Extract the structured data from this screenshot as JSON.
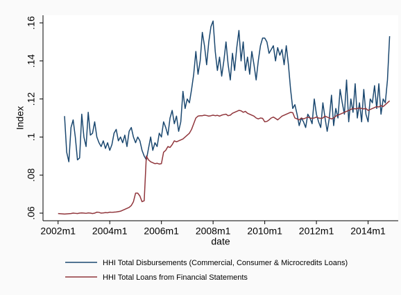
{
  "chart_data": {
    "type": "line",
    "x_label": "date",
    "y_label": "Index",
    "x": [
      504,
      505,
      506,
      507,
      508,
      509,
      510,
      511,
      512,
      513,
      514,
      515,
      516,
      517,
      518,
      519,
      520,
      521,
      522,
      523,
      524,
      525,
      526,
      527,
      528,
      529,
      530,
      531,
      532,
      533,
      534,
      535,
      536,
      537,
      538,
      539,
      540,
      541,
      542,
      543,
      544,
      545,
      546,
      547,
      548,
      549,
      550,
      551,
      552,
      553,
      554,
      555,
      556,
      557,
      558,
      559,
      560,
      561,
      562,
      563,
      564,
      565,
      566,
      567,
      568,
      569,
      570,
      571,
      572,
      573,
      574,
      575,
      576,
      577,
      578,
      579,
      580,
      581,
      582,
      583,
      584,
      585,
      586,
      587,
      588,
      589,
      590,
      591,
      592,
      593,
      594,
      595,
      596,
      597,
      598,
      599,
      600,
      601,
      602,
      603,
      604,
      605,
      606,
      607,
      608,
      609,
      610,
      611,
      612,
      613,
      614,
      615,
      616,
      617,
      618,
      619,
      620,
      621,
      622,
      623,
      624,
      625,
      626,
      627,
      628,
      629,
      630,
      631,
      632,
      633,
      634,
      635,
      636,
      637,
      638,
      639,
      640,
      641,
      642,
      643,
      644,
      645,
      646,
      647,
      648,
      649,
      650,
      651,
      652,
      653,
      654,
      655,
      656,
      657,
      658
    ],
    "series": [
      {
        "name": "HHI Total Disbursements (Commercial, Consumer & Microcredits Loans)",
        "color": "#1a476f",
        "values": [
          null,
          null,
          null,
          0.111,
          0.092,
          0.087,
          0.105,
          0.109,
          0.1,
          0.088,
          0.089,
          0.112,
          0.1,
          0.095,
          0.113,
          0.101,
          0.102,
          0.108,
          0.1,
          0.097,
          0.095,
          0.098,
          0.094,
          0.097,
          0.093,
          0.096,
          0.102,
          0.104,
          0.098,
          0.1,
          0.097,
          0.101,
          0.095,
          0.103,
          0.105,
          0.1,
          0.097,
          0.1,
          0.098,
          0.093,
          0.09,
          0.088,
          0.094,
          0.1,
          0.093,
          0.097,
          0.095,
          0.102,
          0.1,
          0.108,
          0.105,
          0.101,
          0.11,
          0.114,
          0.107,
          0.111,
          0.103,
          0.108,
          0.124,
          0.115,
          0.12,
          0.118,
          0.125,
          0.133,
          0.145,
          0.133,
          0.14,
          0.155,
          0.148,
          0.138,
          0.15,
          0.158,
          0.161,
          0.145,
          0.135,
          0.142,
          0.132,
          0.14,
          0.15,
          0.138,
          0.13,
          0.144,
          0.135,
          0.147,
          0.156,
          0.14,
          0.15,
          0.135,
          0.142,
          0.133,
          0.145,
          0.138,
          0.13,
          0.14,
          0.148,
          0.152,
          0.152,
          0.15,
          0.144,
          0.146,
          0.148,
          0.14,
          0.147,
          0.143,
          0.146,
          0.138,
          0.148,
          0.138,
          0.125,
          0.115,
          0.117,
          0.112,
          0.106,
          0.11,
          0.108,
          0.105,
          0.112,
          0.11,
          0.107,
          0.12,
          0.112,
          0.108,
          0.105,
          0.118,
          0.11,
          0.103,
          0.11,
          0.122,
          0.106,
          0.115,
          0.11,
          0.125,
          0.118,
          0.112,
          0.13,
          0.108,
          0.12,
          0.113,
          0.128,
          0.11,
          0.118,
          0.108,
          0.125,
          0.112,
          0.108,
          0.12,
          0.118,
          0.127,
          0.115,
          0.128,
          0.112,
          0.12,
          0.118,
          0.13,
          0.153
        ]
      },
      {
        "name": "HHI Total Loans from Financial Statements",
        "color": "#90353b",
        "values": [
          0.0598,
          0.0597,
          0.0596,
          0.0595,
          0.0596,
          0.0597,
          0.0598,
          0.06,
          0.0599,
          0.0598,
          0.06,
          0.0601,
          0.06,
          0.0599,
          0.0601,
          0.06,
          0.0598,
          0.06,
          0.0605,
          0.0604,
          0.06,
          0.0601,
          0.0603,
          0.0602,
          0.0605,
          0.0604,
          0.0605,
          0.0606,
          0.0608,
          0.061,
          0.0615,
          0.062,
          0.0625,
          0.063,
          0.064,
          0.066,
          0.0705,
          0.0705,
          0.069,
          0.066,
          0.0665,
          0.09,
          0.088,
          0.087,
          0.0865,
          0.086,
          0.0862,
          0.0858,
          0.086,
          0.092,
          0.093,
          0.095,
          0.0945,
          0.096,
          0.098,
          0.0975,
          0.098,
          0.0985,
          0.099,
          0.1,
          0.101,
          0.102,
          0.104,
          0.107,
          0.11,
          0.111,
          0.1112,
          0.1112,
          0.1115,
          0.1113,
          0.111,
          0.1112,
          0.1115,
          0.1112,
          0.1114,
          0.111,
          0.1115,
          0.1118,
          0.112,
          0.1112,
          0.1115,
          0.1125,
          0.113,
          0.1135,
          0.114,
          0.1138,
          0.113,
          0.1135,
          0.1125,
          0.112,
          0.1115,
          0.111,
          0.11,
          0.1095,
          0.11,
          0.1098,
          0.108,
          0.1082,
          0.109,
          0.11,
          0.1105,
          0.1098,
          0.109,
          0.11,
          0.111,
          0.1115,
          0.112,
          0.1125,
          0.113,
          0.1128,
          0.11,
          0.1095,
          0.109,
          0.11,
          0.1095,
          0.11,
          0.1105,
          0.11,
          0.1098,
          0.11,
          0.1105,
          0.11,
          0.1098,
          0.11,
          0.111,
          0.1105,
          0.11,
          0.1095,
          0.11,
          0.111,
          0.1115,
          0.112,
          0.1125,
          0.113,
          0.1135,
          0.114,
          0.1145,
          0.115,
          0.1148,
          0.115,
          0.1152,
          0.115,
          0.1148,
          0.115,
          0.114,
          0.1145,
          0.115,
          0.1155,
          0.116,
          0.1158,
          0.1165,
          0.116,
          0.117,
          0.118,
          0.119
        ]
      }
    ],
    "xlim": [
      497,
      662
    ],
    "xticks": [
      {
        "value": 504,
        "label": "2002m1"
      },
      {
        "value": 528,
        "label": "2004m1"
      },
      {
        "value": 552,
        "label": "2006m1"
      },
      {
        "value": 576,
        "label": "2008m1"
      },
      {
        "value": 600,
        "label": "2010m1"
      },
      {
        "value": 624,
        "label": "2012m1"
      },
      {
        "value": 648,
        "label": "2014m1"
      }
    ],
    "ylim": [
      0.056,
      0.164
    ],
    "yticks": [
      {
        "value": 0.06,
        "label": ".06"
      },
      {
        "value": 0.08,
        "label": ".08"
      },
      {
        "value": 0.1,
        "label": ".1"
      },
      {
        "value": 0.12,
        "label": ".12"
      },
      {
        "value": 0.14,
        "label": ".14"
      },
      {
        "value": 0.16,
        "label": ".16"
      }
    ]
  }
}
